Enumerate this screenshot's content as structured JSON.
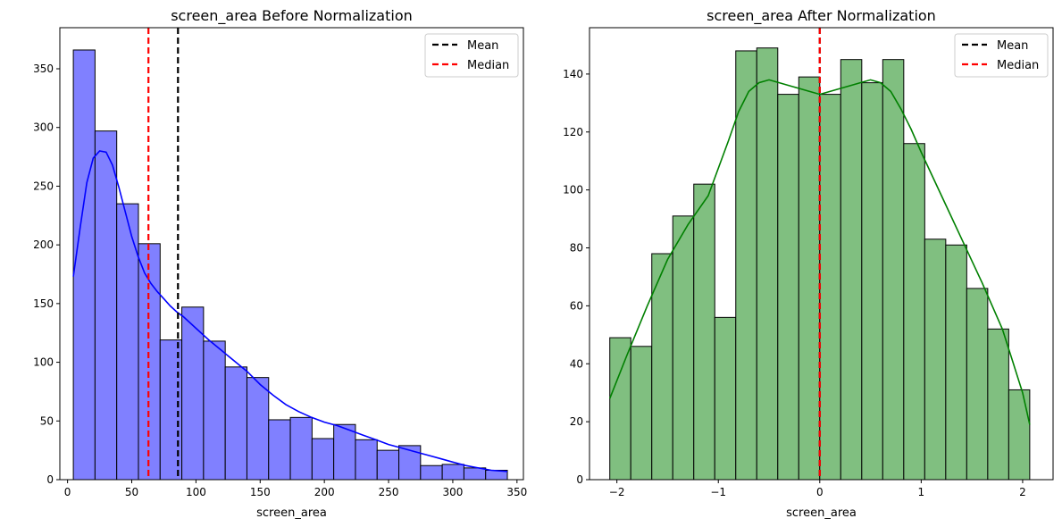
{
  "chart_data": [
    {
      "type": "histogram",
      "title": "screen_area Before Normalization",
      "xlabel": "screen_area",
      "xlim": [
        -6.0,
        355.0
      ],
      "ylim": [
        0,
        385
      ],
      "xticks": [
        0,
        50,
        100,
        150,
        200,
        250,
        300,
        350
      ],
      "yticks": [
        0,
        50,
        100,
        150,
        200,
        250,
        300,
        350
      ],
      "bar_color": "#8080ff",
      "kde_color": "#0000ff",
      "bins": [
        {
          "x0": 4.5,
          "x1": 21.4,
          "count": 366
        },
        {
          "x0": 21.4,
          "x1": 38.3,
          "count": 297
        },
        {
          "x0": 38.3,
          "x1": 55.2,
          "count": 235
        },
        {
          "x0": 55.2,
          "x1": 72.1,
          "count": 201
        },
        {
          "x0": 72.1,
          "x1": 89.0,
          "count": 119
        },
        {
          "x0": 89.0,
          "x1": 105.9,
          "count": 147
        },
        {
          "x0": 105.9,
          "x1": 122.8,
          "count": 118
        },
        {
          "x0": 122.8,
          "x1": 139.7,
          "count": 96
        },
        {
          "x0": 139.7,
          "x1": 156.6,
          "count": 87
        },
        {
          "x0": 156.6,
          "x1": 173.5,
          "count": 51
        },
        {
          "x0": 173.5,
          "x1": 190.4,
          "count": 53
        },
        {
          "x0": 190.4,
          "x1": 207.3,
          "count": 35
        },
        {
          "x0": 207.3,
          "x1": 224.2,
          "count": 47
        },
        {
          "x0": 224.2,
          "x1": 241.1,
          "count": 34
        },
        {
          "x0": 241.1,
          "x1": 258.0,
          "count": 25
        },
        {
          "x0": 258.0,
          "x1": 274.9,
          "count": 29
        },
        {
          "x0": 274.9,
          "x1": 291.8,
          "count": 12
        },
        {
          "x0": 291.8,
          "x1": 308.7,
          "count": 13
        },
        {
          "x0": 308.7,
          "x1": 325.6,
          "count": 10
        },
        {
          "x0": 325.6,
          "x1": 342.5,
          "count": 8
        }
      ],
      "kde": {
        "x": [
          4.5,
          10,
          15,
          20,
          25,
          30,
          35,
          40,
          45,
          50,
          55,
          60,
          65,
          70,
          75,
          80,
          85,
          90,
          95,
          100,
          110,
          120,
          130,
          140,
          150,
          160,
          170,
          180,
          190,
          200,
          210,
          220,
          230,
          240,
          250,
          260,
          270,
          280,
          290,
          300,
          310,
          320,
          330,
          342.5
        ],
        "y": [
          173,
          216,
          253,
          274,
          280,
          279,
          268,
          249,
          228,
          207,
          190,
          176,
          167,
          160,
          154,
          148,
          143,
          139,
          134,
          129,
          119,
          110,
          101,
          92,
          81,
          72,
          64,
          58,
          53,
          49,
          46,
          42,
          38,
          34,
          30,
          27,
          24,
          21,
          18,
          15,
          12,
          10,
          8,
          7
        ]
      },
      "vlines": [
        {
          "label": "Mean",
          "x": 86,
          "color": "#000000"
        },
        {
          "label": "Median",
          "x": 63,
          "color": "#ff0000"
        }
      ],
      "legend": {
        "position": "top-right",
        "entries": [
          "Mean",
          "Median"
        ]
      }
    },
    {
      "type": "histogram",
      "title": "screen_area After Normalization",
      "xlabel": "screen_area",
      "xlim": [
        -2.27,
        2.3
      ],
      "ylim": [
        0,
        156
      ],
      "xticks": [
        -2,
        -1,
        0,
        1,
        2
      ],
      "xtick_labels": [
        "−2",
        "−1",
        "0",
        "1",
        "2"
      ],
      "yticks": [
        0,
        20,
        40,
        60,
        80,
        100,
        120,
        140
      ],
      "bar_color": "#80bf80",
      "kde_color": "#008000",
      "bins": [
        {
          "x0": -2.07,
          "x1": -1.863,
          "count": 49
        },
        {
          "x0": -1.863,
          "x1": -1.656,
          "count": 46
        },
        {
          "x0": -1.656,
          "x1": -1.449,
          "count": 78
        },
        {
          "x0": -1.449,
          "x1": -1.242,
          "count": 91
        },
        {
          "x0": -1.242,
          "x1": -1.035,
          "count": 102
        },
        {
          "x0": -1.035,
          "x1": -0.828,
          "count": 56
        },
        {
          "x0": -0.828,
          "x1": -0.621,
          "count": 148
        },
        {
          "x0": -0.621,
          "x1": -0.414,
          "count": 149
        },
        {
          "x0": -0.414,
          "x1": -0.207,
          "count": 133
        },
        {
          "x0": -0.207,
          "x1": 0.0,
          "count": 139
        },
        {
          "x0": 0.0,
          "x1": 0.207,
          "count": 133
        },
        {
          "x0": 0.207,
          "x1": 0.414,
          "count": 145
        },
        {
          "x0": 0.414,
          "x1": 0.621,
          "count": 137
        },
        {
          "x0": 0.621,
          "x1": 0.828,
          "count": 145
        },
        {
          "x0": 0.828,
          "x1": 1.035,
          "count": 116
        },
        {
          "x0": 1.035,
          "x1": 1.242,
          "count": 83
        },
        {
          "x0": 1.242,
          "x1": 1.449,
          "count": 81
        },
        {
          "x0": 1.449,
          "x1": 1.656,
          "count": 66
        },
        {
          "x0": 1.656,
          "x1": 1.863,
          "count": 52
        },
        {
          "x0": 1.863,
          "x1": 2.07,
          "count": 31
        }
      ],
      "kde": {
        "x": [
          -2.07,
          -1.9,
          -1.7,
          -1.5,
          -1.3,
          -1.1,
          -0.9,
          -0.8,
          -0.7,
          -0.6,
          -0.5,
          -0.4,
          -0.3,
          -0.2,
          -0.1,
          0.0,
          0.1,
          0.2,
          0.3,
          0.4,
          0.5,
          0.6,
          0.7,
          0.8,
          0.9,
          1.0,
          1.2,
          1.4,
          1.6,
          1.8,
          1.9,
          2.0,
          2.07
        ],
        "y": [
          28,
          43,
          60,
          76,
          88,
          98,
          117,
          127,
          134,
          137,
          138,
          137,
          136,
          135,
          134,
          133,
          134,
          135,
          136,
          137,
          138,
          137,
          134,
          128,
          121,
          113,
          98,
          83,
          68,
          52,
          41,
          30,
          19
        ]
      },
      "vlines": [
        {
          "label": "Mean",
          "x": 0.0,
          "color": "#000000"
        },
        {
          "label": "Median",
          "x": 0.0,
          "color": "#ff0000"
        }
      ],
      "legend": {
        "position": "top-right",
        "entries": [
          "Mean",
          "Median"
        ]
      }
    }
  ]
}
